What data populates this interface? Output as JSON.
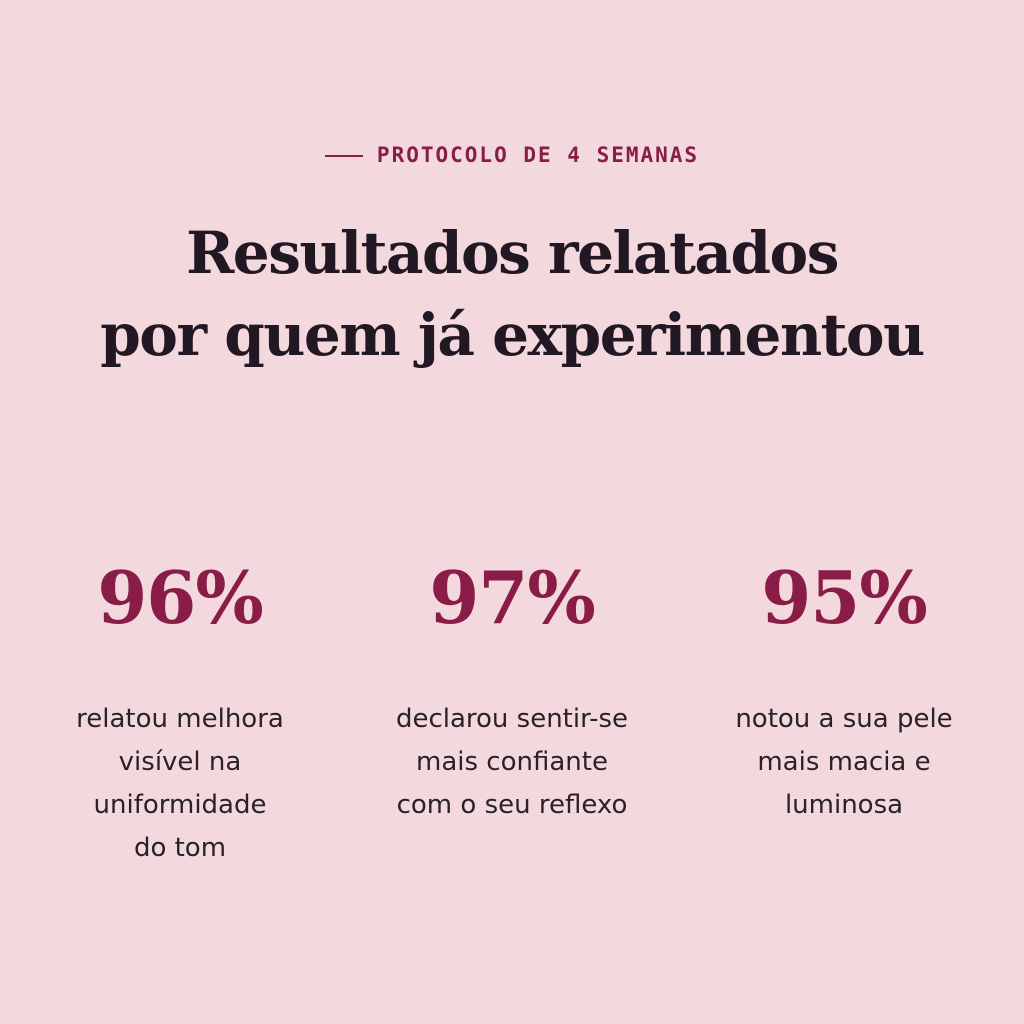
{
  "eyebrow": "PROTOCOLO DE 4 SEMANAS",
  "headline": {
    "line1": "Resultados relatados",
    "line2": "por quem já experimentou"
  },
  "stats": [
    {
      "value": "96%",
      "lines": [
        "relatou melhora",
        "visível na",
        "uniformidade",
        "do tom"
      ]
    },
    {
      "value": "97%",
      "lines": [
        "declarou sentir-se",
        "mais confiante",
        "com o seu reflexo"
      ]
    },
    {
      "value": "95%",
      "lines": [
        "notou a sua pele",
        "mais macia e",
        "luminosa"
      ]
    }
  ],
  "colors": {
    "background": "#f3d9de",
    "accent": "#8a1c48",
    "text": "#211824"
  }
}
